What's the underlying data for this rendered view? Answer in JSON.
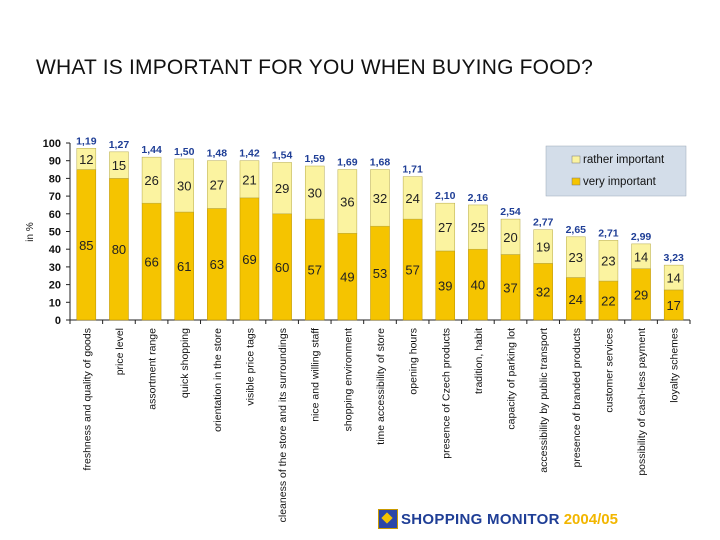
{
  "title": "WHAT IS IMPORTANT FOR YOU WHEN BUYING FOOD?",
  "logo": {
    "brand": "SHOPPING MONITOR",
    "years": "2004/05"
  },
  "colors": {
    "very_important": "#f5c400",
    "rather_important": "#fbf3a0",
    "average": "#1f3e96",
    "legend_bg": "#d3dde9"
  },
  "chart_data": {
    "type": "bar",
    "stacked": true,
    "ylabel": "in %",
    "ylim": [
      0,
      100
    ],
    "yticks": [
      0,
      10,
      20,
      30,
      40,
      50,
      60,
      70,
      80,
      90,
      100
    ],
    "legend": [
      "rather important",
      "very important"
    ],
    "legend_position": "top-right",
    "categories": [
      "freshness and quality of goods",
      "price level",
      "assortment range",
      "quick shopping",
      "orientation in the store",
      "visible price tags",
      "cleaness of the store and its surroundings",
      "nice and willing staff",
      "shopping environment",
      "time accessibility of store",
      "opening hours",
      "presence of Czech products",
      "tradition, habit",
      "capacity of parking lot",
      "accessibility by public transport",
      "presence of branded products",
      "customer services",
      "possibility of cash-less payment",
      "loyalty schemes"
    ],
    "series": [
      {
        "name": "very important",
        "values": [
          85,
          80,
          66,
          61,
          63,
          69,
          60,
          57,
          49,
          53,
          57,
          39,
          40,
          37,
          32,
          24,
          22,
          29,
          17
        ]
      },
      {
        "name": "rather important",
        "values": [
          12,
          15,
          26,
          30,
          27,
          21,
          29,
          30,
          36,
          32,
          24,
          27,
          25,
          20,
          19,
          23,
          23,
          14,
          14
        ]
      }
    ],
    "averages": [
      "1,19",
      "1,27",
      "1,44",
      "1,50",
      "1,48",
      "1,42",
      "1,54",
      "1,59",
      "1,69",
      "1,68",
      "1,71",
      "2,10",
      "2,16",
      "2,54",
      "2,77",
      "2,65",
      "2,71",
      "2,99",
      "3,23"
    ]
  }
}
